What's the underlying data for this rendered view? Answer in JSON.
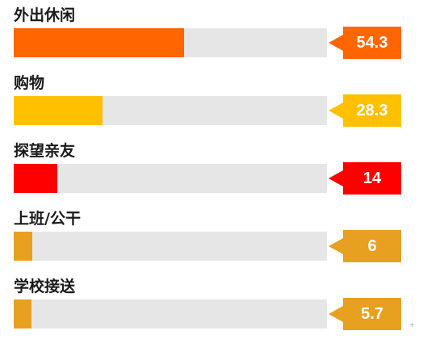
{
  "chart_data": {
    "type": "bar",
    "orientation": "horizontal",
    "categories": [
      "外出休闲",
      "购物",
      "探望亲友",
      "上班/公干",
      "学校接送"
    ],
    "values": [
      54.3,
      28.3,
      14,
      6,
      5.7
    ],
    "value_labels": [
      "54.3",
      "28.3",
      "14",
      "6",
      "5.7"
    ],
    "colors": [
      "#ff6600",
      "#ffc000",
      "#ff0000",
      "#e8a020",
      "#e8a020"
    ],
    "track_color": "#e6e6e6",
    "xlim": [
      0,
      100
    ],
    "title": "",
    "xlabel": "",
    "ylabel": "",
    "grid": false,
    "legend": "none"
  },
  "corner_mark": "+"
}
